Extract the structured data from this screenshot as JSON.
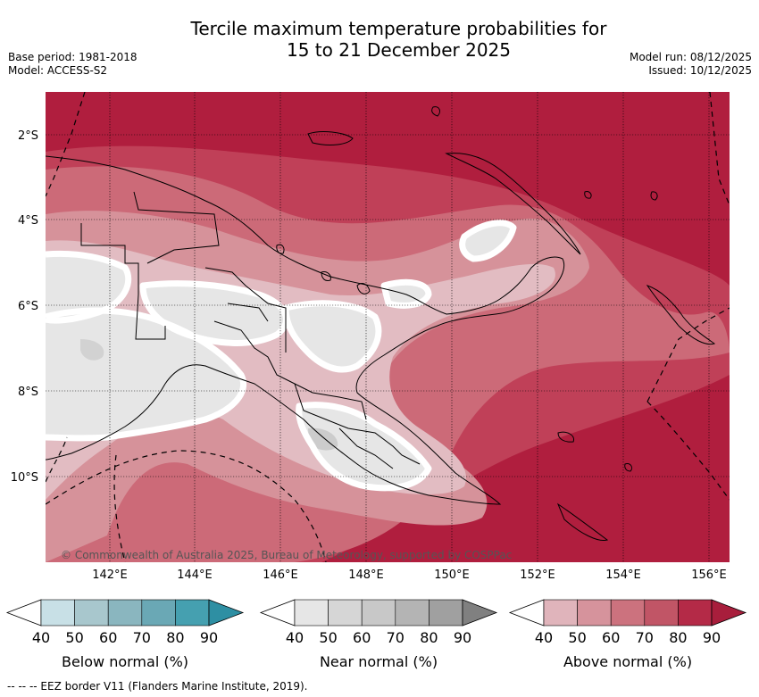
{
  "header": {
    "title_line1": "Tercile maximum temperature probabilities for",
    "title_line2": "15 to 21 December 2025",
    "base_period": "Base period: 1981-2018",
    "model": "Model: ACCESS-S2",
    "model_run": "Model run: 08/12/2025",
    "issued": "Issued: 10/12/2025"
  },
  "map": {
    "lat_labels": [
      "2°S",
      "4°S",
      "6°S",
      "8°S",
      "10°S"
    ],
    "lon_labels": [
      "142°E",
      "144°E",
      "146°E",
      "148°E",
      "150°E",
      "152°E",
      "154°E",
      "156°E"
    ],
    "copyright": "© Commonwealth of Australia 2025, Bureau of Meteorology, supported by COSPPac"
  },
  "legend": {
    "ticks": [
      "40",
      "50",
      "60",
      "70",
      "80",
      "90"
    ],
    "below": {
      "label": "Below normal (%)",
      "colors": [
        "#c8e0e6",
        "#a8c7cd",
        "#8ab6bf",
        "#6aa8b5",
        "#45a0b0",
        "#2e8fa3"
      ]
    },
    "near": {
      "label": "Near normal (%)",
      "colors": [
        "#e6e6e6",
        "#d6d6d6",
        "#c8c8c8",
        "#b4b4b4",
        "#a0a0a0",
        "#808080"
      ]
    },
    "above": {
      "label": "Above normal (%)",
      "colors": [
        "#e0b4bb",
        "#d6939c",
        "#cc727e",
        "#c15566",
        "#b42a47",
        "#a81e3c"
      ]
    }
  },
  "footnote": "--  --  -- EEZ border V11 (Flanders Marine Institute, 2019)."
}
